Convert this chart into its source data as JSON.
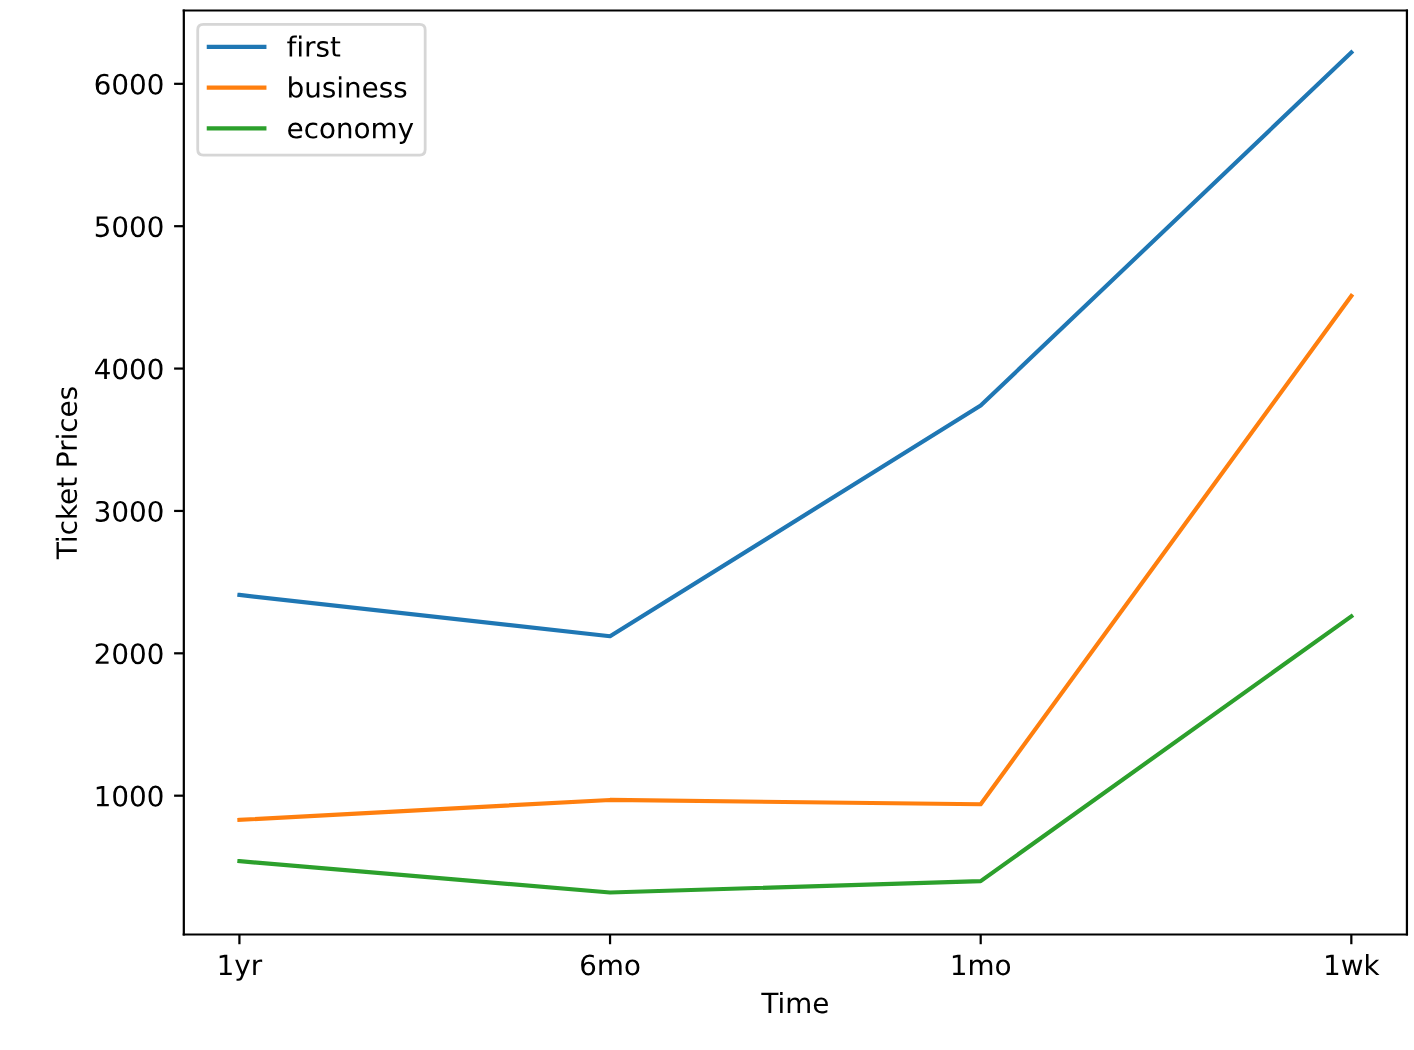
{
  "chart_data": {
    "type": "line",
    "xlabel": "Time",
    "ylabel": "Ticket Prices",
    "categories": [
      "1yr",
      "6mo",
      "1mo",
      "1wk"
    ],
    "series": [
      {
        "name": "first",
        "color": "#1f77b4",
        "values": [
          2410,
          2120,
          3740,
          6220
        ]
      },
      {
        "name": "business",
        "color": "#ff7f0e",
        "values": [
          830,
          970,
          940,
          4510
        ]
      },
      {
        "name": "economy",
        "color": "#2ca02c",
        "values": [
          540,
          320,
          400,
          2260
        ]
      }
    ],
    "ylim": [
      25,
      6515
    ],
    "yticks": [
      1000,
      2000,
      3000,
      4000,
      5000,
      6000
    ],
    "legend": "top left",
    "grid": false,
    "marker": "none",
    "line_style": "solid"
  }
}
